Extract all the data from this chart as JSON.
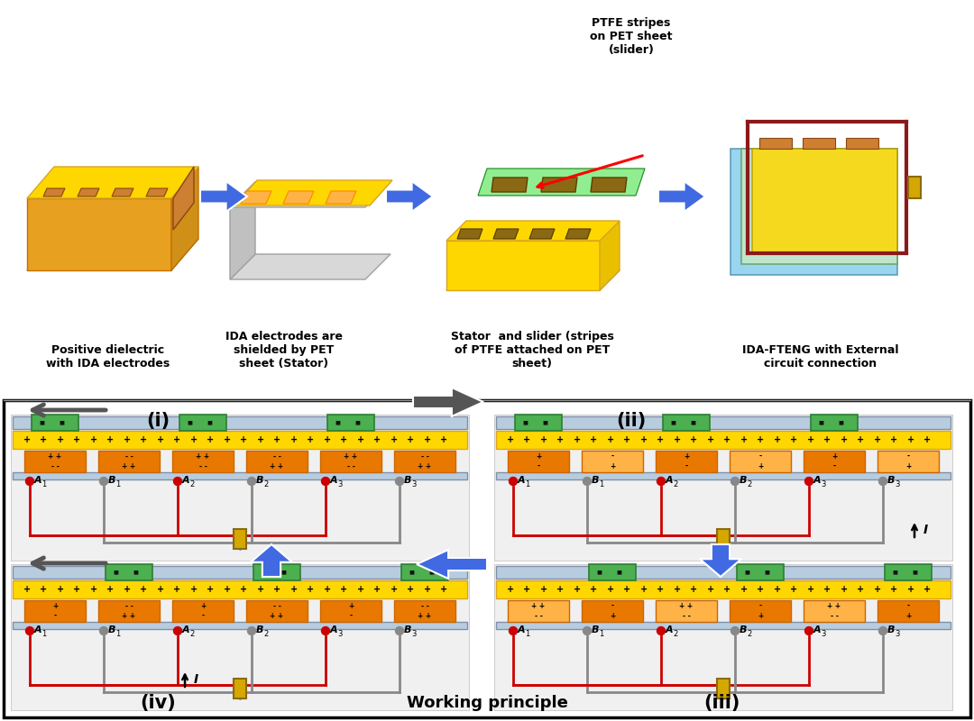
{
  "fig_width": 10.8,
  "fig_height": 8.0,
  "dpi": 100,
  "bg_color": "#ffffff",
  "captions_top": [
    "Positive dielectric\nwith IDA electrodes",
    "IDA electrodes are\nshielded by PET\nsheet (Stator)",
    "Stator  and slider (stripes\nof PTFE attached on PET\nsheet)",
    "IDA-FTENG with External\ncircuit connection"
  ],
  "ptfe_label": "PTFE stripes\non PET sheet\n(slider)",
  "working_principle_label": "Working principle",
  "panel_labels": [
    "(i)",
    "(ii)",
    "(iii)",
    "(iv)"
  ]
}
